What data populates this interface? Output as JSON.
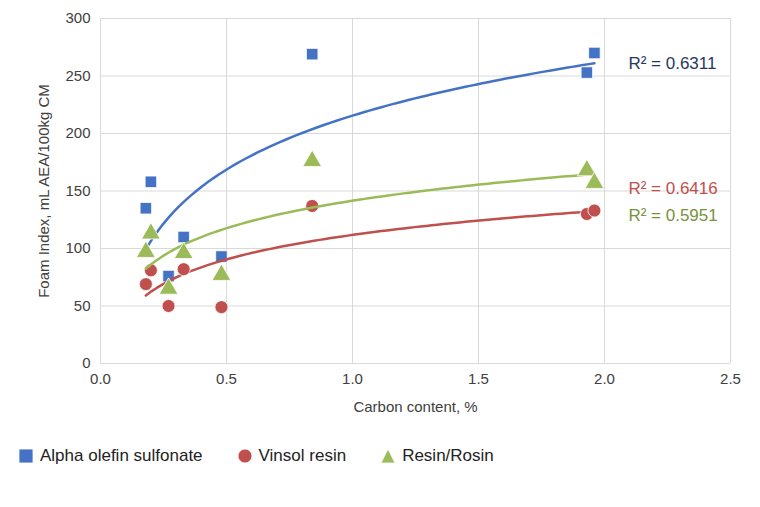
{
  "chart_data": {
    "type": "scatter",
    "x_label": "Carbon content, %",
    "y_label": "Foam Index, mL AEA/100kg CM",
    "xlim": [
      0,
      2.5
    ],
    "xticks": [
      {
        "value": 0,
        "label": "0.0"
      },
      {
        "value": 0.5,
        "label": "0.5"
      },
      {
        "value": 1,
        "label": "1.0"
      },
      {
        "value": 1.5,
        "label": "1.5"
      },
      {
        "value": 2,
        "label": "2.0"
      },
      {
        "value": 2.5,
        "label": "2.5"
      }
    ],
    "ylim": [
      0,
      300
    ],
    "yticks": [
      0,
      50,
      100,
      150,
      200,
      250,
      300
    ],
    "grid": true,
    "legend": "bottom",
    "series": [
      {
        "name": "Alpha olefin sulfonate",
        "color": "#4472c4",
        "marker": "square",
        "x": [
          0.18,
          0.2,
          0.27,
          0.33,
          0.48,
          0.84,
          1.93,
          1.96
        ],
        "values": [
          135,
          158,
          76,
          110,
          93,
          269,
          253,
          270
        ]
      },
      {
        "name": "Vinsol resin",
        "color": "#c0504d",
        "marker": "circle",
        "x": [
          0.18,
          0.2,
          0.27,
          0.33,
          0.48,
          0.84,
          1.93,
          1.96
        ],
        "values": [
          69,
          81,
          50,
          82,
          49,
          137,
          130,
          133
        ]
      },
      {
        "name": "Resin/Rosin",
        "color": "#9bbb59",
        "marker": "triangle",
        "x": [
          0.18,
          0.2,
          0.27,
          0.33,
          0.48,
          0.84,
          1.93,
          1.96
        ],
        "values": [
          97,
          113,
          65,
          96,
          77,
          176,
          168,
          157
        ]
      }
    ],
    "annotations": [
      {
        "text": "R² = 0.6311",
        "color": "#1f3864"
      },
      {
        "text": "R² = 0.5951",
        "color": "#77933c"
      },
      {
        "text": "R² = 0.6416",
        "color": "#c0504d"
      }
    ]
  }
}
